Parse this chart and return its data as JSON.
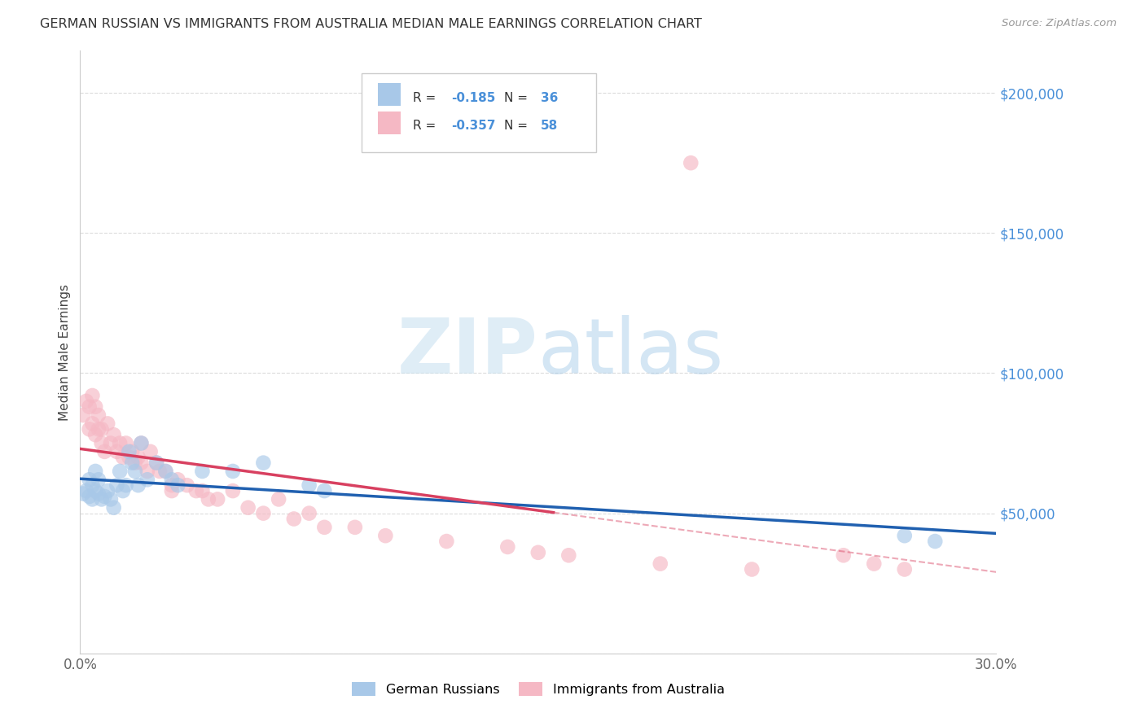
{
  "title": "GERMAN RUSSIAN VS IMMIGRANTS FROM AUSTRALIA MEDIAN MALE EARNINGS CORRELATION CHART",
  "source": "Source: ZipAtlas.com",
  "ylabel": "Median Male Earnings",
  "xlim": [
    0,
    0.3
  ],
  "ylim": [
    0,
    215000
  ],
  "xticks": [
    0.0,
    0.05,
    0.1,
    0.15,
    0.2,
    0.25,
    0.3
  ],
  "ytick_positions": [
    0,
    50000,
    100000,
    150000,
    200000
  ],
  "ytick_labels": [
    "",
    "$50,000",
    "$100,000",
    "$150,000",
    "$200,000"
  ],
  "legend_label1": "German Russians",
  "legend_label2": "Immigrants from Australia",
  "r1": -0.185,
  "n1": 36,
  "r2": -0.357,
  "n2": 58,
  "color_blue": "#a8c8e8",
  "color_pink": "#f5b8c4",
  "line_blue": "#2060b0",
  "line_pink": "#d84060",
  "watermark_zip": "ZIP",
  "watermark_atlas": "atlas",
  "background_color": "#ffffff",
  "grid_color": "#cccccc",
  "blue_x": [
    0.001,
    0.002,
    0.003,
    0.003,
    0.004,
    0.004,
    0.005,
    0.005,
    0.006,
    0.006,
    0.007,
    0.008,
    0.009,
    0.01,
    0.011,
    0.012,
    0.013,
    0.014,
    0.015,
    0.016,
    0.017,
    0.018,
    0.019,
    0.02,
    0.022,
    0.025,
    0.028,
    0.03,
    0.032,
    0.04,
    0.05,
    0.06,
    0.075,
    0.08,
    0.27,
    0.28
  ],
  "blue_y": [
    57000,
    58000,
    56000,
    62000,
    55000,
    60000,
    58000,
    65000,
    57000,
    62000,
    55000,
    56000,
    58000,
    55000,
    52000,
    60000,
    65000,
    58000,
    60000,
    72000,
    68000,
    65000,
    60000,
    75000,
    62000,
    68000,
    65000,
    62000,
    60000,
    65000,
    65000,
    68000,
    60000,
    58000,
    42000,
    40000
  ],
  "pink_x": [
    0.001,
    0.002,
    0.003,
    0.003,
    0.004,
    0.004,
    0.005,
    0.005,
    0.006,
    0.006,
    0.007,
    0.007,
    0.008,
    0.009,
    0.01,
    0.011,
    0.012,
    0.013,
    0.014,
    0.015,
    0.016,
    0.017,
    0.018,
    0.019,
    0.02,
    0.02,
    0.022,
    0.023,
    0.025,
    0.026,
    0.028,
    0.03,
    0.032,
    0.035,
    0.038,
    0.04,
    0.042,
    0.045,
    0.05,
    0.055,
    0.06,
    0.065,
    0.07,
    0.075,
    0.08,
    0.09,
    0.1,
    0.12,
    0.14,
    0.15,
    0.16,
    0.19,
    0.2,
    0.22,
    0.25,
    0.26,
    0.27,
    0.03
  ],
  "pink_y": [
    85000,
    90000,
    88000,
    80000,
    92000,
    82000,
    78000,
    88000,
    80000,
    85000,
    75000,
    80000,
    72000,
    82000,
    75000,
    78000,
    72000,
    75000,
    70000,
    75000,
    70000,
    72000,
    68000,
    70000,
    68000,
    75000,
    65000,
    72000,
    68000,
    65000,
    65000,
    60000,
    62000,
    60000,
    58000,
    58000,
    55000,
    55000,
    58000,
    52000,
    50000,
    55000,
    48000,
    50000,
    45000,
    45000,
    42000,
    40000,
    38000,
    36000,
    35000,
    32000,
    175000,
    30000,
    35000,
    32000,
    30000,
    58000
  ]
}
